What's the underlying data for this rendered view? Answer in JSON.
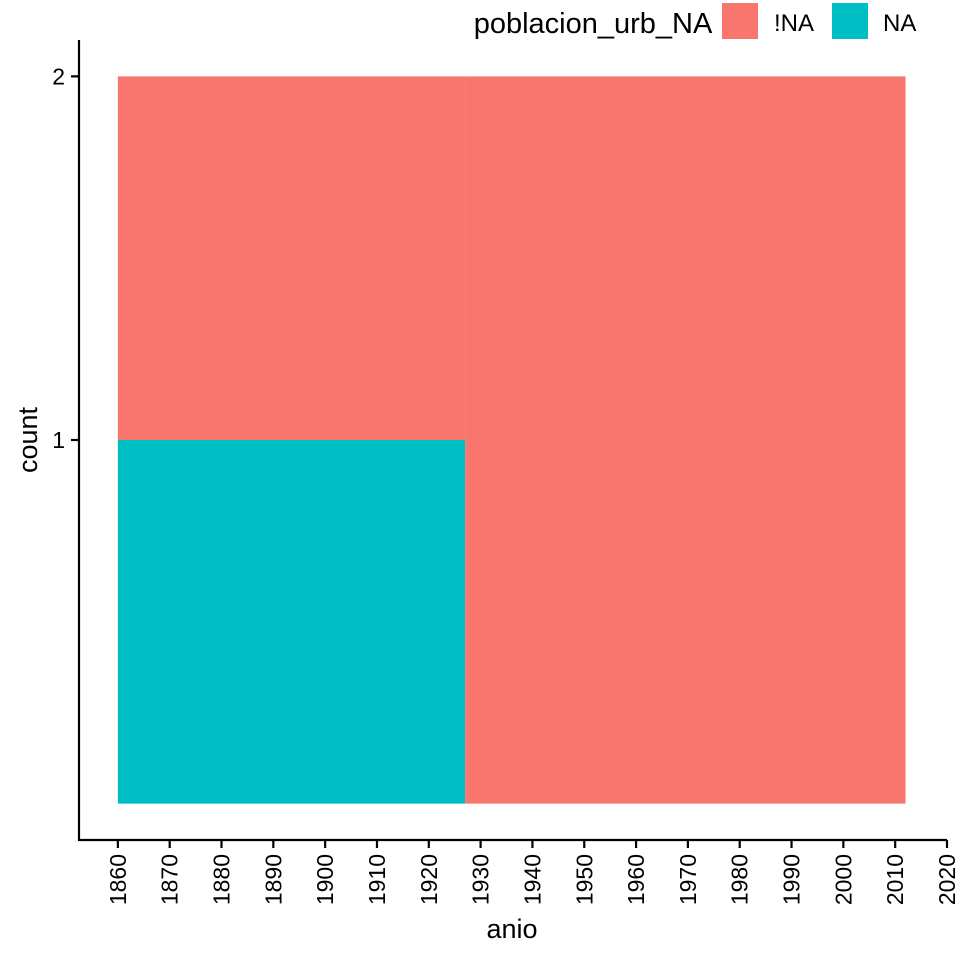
{
  "chart_data": {
    "type": "area",
    "xlabel": "anio",
    "ylabel": "count",
    "xlim": [
      1852.5,
      2020
    ],
    "ylim": [
      -0.1,
      2.1
    ],
    "x_ticks": [
      "1860",
      "1870",
      "1880",
      "1890",
      "1900",
      "1910",
      "1920",
      "1930",
      "1940",
      "1950",
      "1960",
      "1970",
      "1980",
      "1990",
      "2000",
      "2010",
      "2020"
    ],
    "y_ticks": [
      "1",
      "2"
    ],
    "legend": {
      "title": "poblacion_urb_NA",
      "position": "top-right",
      "entries": [
        "!NA",
        "NA"
      ]
    },
    "series": [
      {
        "name": "!NA",
        "color": "#F8766D",
        "stack_base": 1,
        "stack_top": 2,
        "x_range": [
          1860,
          1927
        ]
      },
      {
        "name": "NA",
        "color": "#00BFC4",
        "stack_base": 0,
        "stack_top": 1,
        "x_range": [
          1860,
          1927
        ]
      },
      {
        "name": "!NA",
        "color": "#F8766D",
        "stack_base": 0,
        "stack_top": 2,
        "x_range": [
          1927,
          2012
        ]
      }
    ],
    "grid": false
  }
}
